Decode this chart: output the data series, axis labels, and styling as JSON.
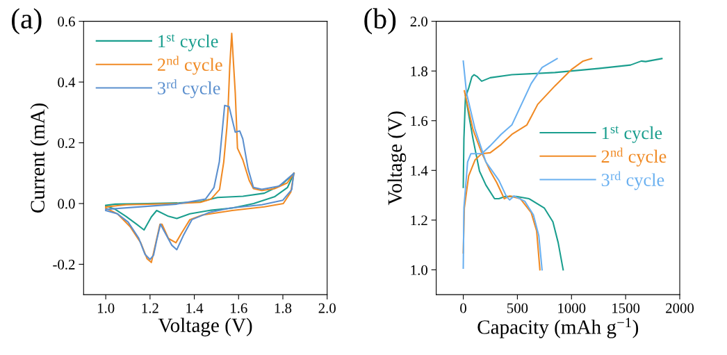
{
  "chart_data": [
    {
      "type": "line",
      "xlabel": "Voltage (V)",
      "ylabel": "Current (mA)",
      "annotations": [
        "(a)"
      ],
      "legend": "top left",
      "grid": false,
      "xlim": [
        0.9,
        2.0
      ],
      "xticks": [
        {
          "value": 1.0,
          "label": "1.0"
        },
        1.2,
        1.4,
        1.6,
        1.8,
        {
          "value": 2.0,
          "label": "2.0"
        }
      ],
      "ylim": [
        -0.3,
        0.6
      ],
      "yticks": [
        -0.2,
        {
          "value": 0,
          "label": "0.0"
        },
        0.2,
        0.4,
        0.6
      ],
      "series": [
        {
          "name": "1$^{st}$ cycle",
          "color": "#1a9e8e",
          "x": [
            1.0,
            1.043,
            1.091,
            1.139,
            1.173,
            1.206,
            1.23,
            1.283,
            1.321,
            1.38,
            1.476,
            1.571,
            1.668,
            1.764,
            1.821,
            1.85
          ],
          "values": [
            -0.008,
            -0.019,
            -0.042,
            -0.068,
            -0.087,
            -0.044,
            -0.023,
            -0.042,
            -0.049,
            -0.034,
            -0.022,
            -0.015,
            0,
            0.023,
            0.053,
            0.099
          ]
        },
        {
          "color": "#1a9e8e",
          "x": [
            1.0,
            1.043,
            1.187,
            1.331,
            1.428,
            1.476,
            1.505,
            1.62,
            1.716,
            1.793,
            1.85
          ],
          "values": [
            -0.006,
            -0.002,
            0,
            0.002,
            0.006,
            0.015,
            0.02,
            0.024,
            0.034,
            0.061,
            0.099
          ]
        },
        {
          "name": "2$^{nd}$ cycle",
          "color": "#f08a24",
          "x": [
            1.0,
            1.053,
            1.11,
            1.158,
            1.187,
            1.206,
            1.226,
            1.245,
            1.254,
            1.283,
            1.317,
            1.341,
            1.38,
            1.437,
            1.571,
            1.716,
            1.802,
            1.836,
            1.85
          ],
          "values": [
            -0.015,
            -0.034,
            -0.076,
            -0.129,
            -0.182,
            -0.194,
            -0.13,
            -0.068,
            -0.068,
            -0.115,
            -0.129,
            -0.099,
            -0.053,
            -0.038,
            -0.023,
            -0.011,
            0,
            0.038,
            0.1
          ]
        },
        {
          "color": "#f08a24",
          "x": [
            1.0,
            1.091,
            1.321,
            1.428,
            1.476,
            1.514,
            1.523,
            1.533,
            1.547,
            1.552,
            1.56,
            1.569,
            1.585,
            1.595,
            1.619,
            1.648,
            1.667,
            1.705,
            1.763,
            1.82,
            1.85
          ],
          "values": [
            -0.011,
            -0.004,
            0,
            0.004,
            0.015,
            0.046,
            0.09,
            0.137,
            0.25,
            0.304,
            0.45,
            0.56,
            0.364,
            0.182,
            0.144,
            0.076,
            0.049,
            0.043,
            0.049,
            0.068,
            0.1
          ]
        },
        {
          "name": "3$^{rd}$ cycle",
          "color": "#5b8fce",
          "x": [
            1.0,
            1.053,
            1.101,
            1.149,
            1.177,
            1.2,
            1.216,
            1.23,
            1.247,
            1.264,
            1.298,
            1.321,
            1.35,
            1.389,
            1.465,
            1.561,
            1.705,
            1.8,
            1.84,
            1.849
          ],
          "values": [
            -0.023,
            -0.034,
            -0.061,
            -0.114,
            -0.167,
            -0.184,
            -0.17,
            -0.121,
            -0.068,
            -0.091,
            -0.137,
            -0.152,
            -0.106,
            -0.053,
            -0.03,
            -0.015,
            -0.004,
            0.011,
            0.046,
            0.099
          ]
        },
        {
          "color": "#5b8fce",
          "x": [
            1.0,
            1.32,
            1.451,
            1.489,
            1.513,
            1.537,
            1.557,
            1.585,
            1.605,
            1.619,
            1.643,
            1.667,
            1.705,
            1.782,
            1.849
          ],
          "values": [
            -0.019,
            -0.002,
            0.015,
            0.053,
            0.137,
            0.323,
            0.319,
            0.235,
            0.239,
            0.213,
            0.114,
            0.053,
            0.047,
            0.057,
            0.099
          ]
        }
      ]
    },
    {
      "type": "line",
      "xlabel": "Capacity (mAh g$^{−1}$)",
      "ylabel": "Voltage (V)",
      "annotations": [
        "(b)"
      ],
      "legend": "right",
      "grid": false,
      "xlim": [
        -250,
        2000
      ],
      "xticks": [
        0,
        500,
        1000,
        1500,
        2000
      ],
      "ylim": [
        0.9,
        2.0
      ],
      "yticks": [
        {
          "value": 1.0,
          "label": "1.0"
        },
        1.2,
        1.4,
        1.6,
        1.8,
        {
          "value": 2.0,
          "label": "2.0"
        }
      ],
      "series": [
        {
          "name": "1$^{st}$ cycle",
          "color": "#1a9e8e",
          "x": [
            20,
            90,
            150,
            209,
            289,
            329,
            389,
            489,
            608,
            748,
            828,
            877,
            923
          ],
          "values": [
            1.7,
            1.527,
            1.397,
            1.341,
            1.286,
            1.286,
            1.295,
            1.295,
            1.286,
            1.249,
            1.193,
            1.109,
            1.0
          ]
        },
        {
          "color": "#1a9e8e",
          "x": [
            0,
            6,
            20,
            50,
            80,
            100,
            130,
            170,
            249,
            449,
            847,
            1246,
            1545,
            1645,
            1685,
            1835
          ],
          "values": [
            1.332,
            1.527,
            1.694,
            1.731,
            1.777,
            1.785,
            1.777,
            1.759,
            1.773,
            1.785,
            1.794,
            1.81,
            1.824,
            1.84,
            1.838,
            1.85
          ]
        },
        {
          "name": "2$^{nd}$ cycle",
          "color": "#f08a24",
          "x": [
            10,
            90,
            170,
            249,
            309,
            379,
            429,
            528,
            628,
            678,
            708
          ],
          "values": [
            1.72,
            1.564,
            1.471,
            1.397,
            1.351,
            1.286,
            1.297,
            1.286,
            1.23,
            1.156,
            1.0
          ]
        },
        {
          "color": "#f08a24",
          "x": [
            0,
            10,
            50,
            110,
            170,
            249,
            349,
            449,
            588,
            688,
            847,
            997,
            1107,
            1186
          ],
          "values": [
            1.068,
            1.249,
            1.378,
            1.443,
            1.467,
            1.471,
            1.504,
            1.545,
            1.583,
            1.666,
            1.74,
            1.805,
            1.84,
            1.85
          ]
        },
        {
          "name": "3$^{rd}$ cycle",
          "color": "#6ab0f0",
          "x": [
            0,
            30,
            110,
            209,
            329,
            399,
            429,
            469,
            568,
            648,
            698,
            728
          ],
          "values": [
            1.84,
            1.712,
            1.564,
            1.434,
            1.36,
            1.295,
            1.281,
            1.297,
            1.276,
            1.221,
            1.137,
            1.0
          ]
        },
        {
          "color": "#6ab0f0",
          "x": [
            0,
            6,
            40,
            70,
            170,
            249,
            349,
            449,
            508,
            628,
            728,
            867
          ],
          "values": [
            1.007,
            1.249,
            1.434,
            1.467,
            1.467,
            1.499,
            1.545,
            1.583,
            1.638,
            1.75,
            1.814,
            1.85
          ]
        }
      ]
    }
  ]
}
